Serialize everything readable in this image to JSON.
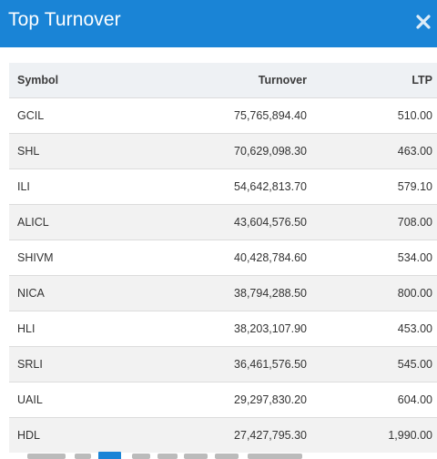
{
  "header": {
    "title": "Top Turnover",
    "close_icon": "close-icon",
    "background_color": "#1a84d6"
  },
  "table": {
    "columns": [
      "Symbol",
      "Turnover",
      "LTP"
    ],
    "rows": [
      {
        "symbol": "GCIL",
        "turnover": "75,765,894.40",
        "ltp": "510.00"
      },
      {
        "symbol": "SHL",
        "turnover": "70,629,098.30",
        "ltp": "463.00"
      },
      {
        "symbol": "ILI",
        "turnover": "54,642,813.70",
        "ltp": "579.10"
      },
      {
        "symbol": "ALICL",
        "turnover": "43,604,576.50",
        "ltp": "708.00"
      },
      {
        "symbol": "SHIVM",
        "turnover": "40,428,784.60",
        "ltp": "534.00"
      },
      {
        "symbol": "NICA",
        "turnover": "38,794,288.50",
        "ltp": "800.00"
      },
      {
        "symbol": "HLI",
        "turnover": "38,203,107.90",
        "ltp": "453.00"
      },
      {
        "symbol": "SRLI",
        "turnover": "36,461,576.50",
        "ltp": "545.00"
      },
      {
        "symbol": "UAIL",
        "turnover": "29,297,830.20",
        "ltp": "604.00"
      },
      {
        "symbol": "HDL",
        "turnover": "27,427,795.30",
        "ltp": "1,990.00"
      }
    ]
  }
}
